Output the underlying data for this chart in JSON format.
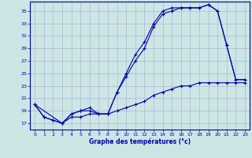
{
  "xlabel": "Graphe des températures (°c)",
  "bg_color": "#cce6e6",
  "grid_color": "#aaaacc",
  "line_color": "#0000aa",
  "ylim": [
    16.0,
    36.5
  ],
  "yticks": [
    17,
    19,
    21,
    23,
    25,
    27,
    29,
    31,
    33,
    35
  ],
  "xlim": [
    -0.5,
    23.5
  ],
  "xticks": [
    0,
    1,
    2,
    3,
    4,
    5,
    6,
    7,
    8,
    9,
    10,
    11,
    12,
    13,
    14,
    15,
    16,
    17,
    18,
    19,
    20,
    21,
    22,
    23
  ],
  "line1_x": [
    0,
    1,
    2,
    3,
    4,
    5,
    6,
    7,
    8,
    9,
    10,
    11,
    12,
    13,
    14,
    15,
    16,
    17,
    18,
    19,
    20,
    21,
    22,
    23
  ],
  "line1_y": [
    20.0,
    18.0,
    17.5,
    17.0,
    18.0,
    18.0,
    18.5,
    18.5,
    18.5,
    19.0,
    19.5,
    20.0,
    20.5,
    21.5,
    22.0,
    22.5,
    23.0,
    23.0,
    23.5,
    23.5,
    23.5,
    23.5,
    23.5,
    23.5
  ],
  "line2_x": [
    0,
    1,
    2,
    3,
    4,
    5,
    6,
    7,
    8,
    9,
    10,
    11,
    12,
    13,
    14,
    15,
    16,
    17,
    18,
    19,
    20,
    21,
    22,
    23
  ],
  "line2_y": [
    20.0,
    18.0,
    17.5,
    17.0,
    18.5,
    19.0,
    19.0,
    18.5,
    18.5,
    22.0,
    24.5,
    27.0,
    29.0,
    32.5,
    34.5,
    35.0,
    35.5,
    35.5,
    35.5,
    36.0,
    35.0,
    29.5,
    24.0,
    24.0
  ],
  "line3_x": [
    0,
    3,
    4,
    5,
    6,
    7,
    8,
    9,
    10,
    11,
    12,
    13,
    14,
    15,
    16,
    17,
    18,
    19,
    20,
    21,
    22,
    23
  ],
  "line3_y": [
    20.0,
    17.0,
    18.5,
    19.0,
    19.5,
    18.5,
    18.5,
    22.0,
    25.0,
    28.0,
    30.0,
    33.0,
    35.0,
    35.5,
    35.5,
    35.5,
    35.5,
    36.0,
    35.0,
    29.5,
    24.0,
    24.0
  ]
}
